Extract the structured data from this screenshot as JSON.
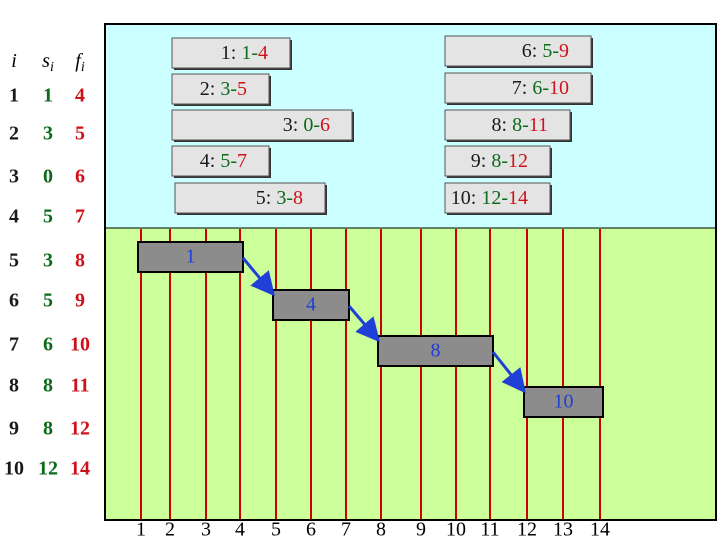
{
  "table": {
    "header": [
      [
        "i"
      ],
      [
        "s",
        "i"
      ],
      [
        "f",
        "i"
      ]
    ],
    "rows": [
      [
        "1",
        "1",
        "4"
      ],
      [
        "2",
        "3",
        "5"
      ],
      [
        "3",
        "0",
        "6"
      ],
      [
        "4",
        "5",
        "7"
      ],
      [
        "5",
        "3",
        "8"
      ],
      [
        "6",
        "5",
        "9"
      ],
      [
        "7",
        "6",
        "10"
      ],
      [
        "8",
        "8",
        "11"
      ],
      [
        "9",
        "8",
        "12"
      ],
      [
        "10",
        "12",
        "14"
      ]
    ]
  },
  "activities": [
    [
      "1: ",
      "1-",
      "4"
    ],
    [
      "2: ",
      "3-",
      "5"
    ],
    [
      "3: ",
      "0-",
      "6"
    ],
    [
      "4: ",
      "5-",
      "7"
    ],
    [
      "5: ",
      "3-",
      "8"
    ],
    [
      "6: ",
      "5-",
      "9"
    ],
    [
      "7: ",
      "6-",
      "10"
    ],
    [
      "8: ",
      "8-",
      "11"
    ],
    [
      "9: ",
      "8-",
      "12"
    ],
    [
      "10: ",
      "12-",
      "14"
    ]
  ],
  "selected": [
    "1",
    "4",
    "8",
    "10"
  ],
  "time_axis": [
    "1",
    "2",
    "3",
    "4",
    "5",
    "6",
    "7",
    "8",
    "9",
    "10",
    "11",
    "12",
    "13",
    "14"
  ]
}
